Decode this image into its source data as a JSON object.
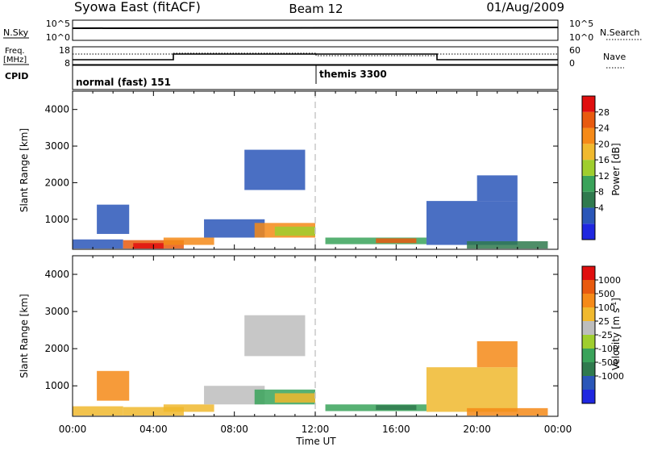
{
  "header": {
    "station": "Syowa East (fitACF)",
    "beam": "Beam 12",
    "date": "01/Aug/2009"
  },
  "top_panels": {
    "nsky_label": "N.Sky",
    "nsearch_label": "N.Search",
    "nsky_ticks": [
      "10^5",
      "10^0"
    ],
    "nsearch_ticks": [
      "10^5",
      "10^0"
    ],
    "freq_label_1": "Freq.",
    "freq_label_2": "[MHz]",
    "freq_ticks": [
      "18",
      "8"
    ],
    "nave_label": "Nave",
    "nave_ticks": [
      "60",
      "0"
    ],
    "cpid_label": "CPID",
    "cpid_segments": [
      {
        "name": "normal (fast) 151",
        "start_hour": 0
      },
      {
        "name": "themis 3300",
        "start_hour": 12
      }
    ]
  },
  "chart_data": [
    {
      "type": "heatmap",
      "title": "",
      "ylabel": "Slant Range [km]",
      "xlabel": "",
      "ylim": [
        180,
        4500
      ],
      "yticks": [
        "4000",
        "3000",
        "2000",
        "1000"
      ],
      "colorbar_label": "Power [dB]",
      "colorbar_ticks": [
        "28",
        "24",
        "20",
        "16",
        "12",
        "8",
        "4"
      ],
      "colors": [
        "#1f27e0",
        "#2a56b8",
        "#2f7a4e",
        "#3aa35a",
        "#9fce2e",
        "#f0b92e",
        "#f58a18",
        "#e85a0f",
        "#e00f0f"
      ],
      "patches": [
        {
          "t": [
            0.0,
            2.5
          ],
          "r": [
            200,
            450
          ],
          "c": 1
        },
        {
          "t": [
            1.2,
            2.8
          ],
          "r": [
            600,
            1400
          ],
          "c": 1
        },
        {
          "t": [
            2.5,
            5.5
          ],
          "r": [
            200,
            430
          ],
          "c": 7
        },
        {
          "t": [
            3.0,
            4.5
          ],
          "r": [
            200,
            350
          ],
          "c": 8
        },
        {
          "t": [
            4.5,
            7.0
          ],
          "r": [
            300,
            500
          ],
          "c": 6
        },
        {
          "t": [
            6.5,
            9.5
          ],
          "r": [
            500,
            1000
          ],
          "c": 1
        },
        {
          "t": [
            8.5,
            11.5
          ],
          "r": [
            1800,
            2900
          ],
          "c": 1
        },
        {
          "t": [
            9.0,
            12.0
          ],
          "r": [
            500,
            900
          ],
          "c": 6
        },
        {
          "t": [
            10.0,
            12.0
          ],
          "r": [
            550,
            800
          ],
          "c": 4
        },
        {
          "t": [
            12.5,
            17.5
          ],
          "r": [
            320,
            500
          ],
          "c": 3
        },
        {
          "t": [
            15.0,
            17.0
          ],
          "r": [
            350,
            480
          ],
          "c": 7
        },
        {
          "t": [
            17.5,
            22.0
          ],
          "r": [
            300,
            1500
          ],
          "c": 1
        },
        {
          "t": [
            19.5,
            23.5
          ],
          "r": [
            200,
            400
          ],
          "c": 2
        },
        {
          "t": [
            20.0,
            22.0
          ],
          "r": [
            1500,
            2200
          ],
          "c": 1
        }
      ]
    },
    {
      "type": "heatmap",
      "title": "",
      "ylabel": "Slant Range [km]",
      "xlabel": "Time UT",
      "ylim": [
        180,
        4500
      ],
      "yticks": [
        "4000",
        "3000",
        "2000",
        "1000"
      ],
      "xticks": [
        "00:00",
        "04:00",
        "08:00",
        "12:00",
        "16:00",
        "20:00",
        "00:00"
      ],
      "colorbar_label": "Velocity [m s",
      "colorbar_label_sup": "-1",
      "colorbar_label_end": "]",
      "colorbar_ticks": [
        "1000",
        "500",
        "100",
        "25",
        "-25",
        "-100",
        "-500",
        "-1000"
      ],
      "colors": [
        "#1f27e0",
        "#2a56b8",
        "#2f7a4e",
        "#3aa35a",
        "#9fce2e",
        "#bdbdbd",
        "#f0b92e",
        "#f58a18",
        "#e85a0f",
        "#e00f0f"
      ],
      "patches": [
        {
          "t": [
            0.0,
            2.5
          ],
          "r": [
            200,
            450
          ],
          "c": 6
        },
        {
          "t": [
            1.2,
            2.8
          ],
          "r": [
            600,
            1400
          ],
          "c": 7
        },
        {
          "t": [
            2.5,
            5.5
          ],
          "r": [
            200,
            430
          ],
          "c": 6
        },
        {
          "t": [
            4.5,
            7.0
          ],
          "r": [
            300,
            500
          ],
          "c": 6
        },
        {
          "t": [
            6.5,
            9.5
          ],
          "r": [
            500,
            1000
          ],
          "c": 5
        },
        {
          "t": [
            8.5,
            11.5
          ],
          "r": [
            1800,
            2900
          ],
          "c": 5
        },
        {
          "t": [
            9.0,
            12.0
          ],
          "r": [
            500,
            900
          ],
          "c": 3
        },
        {
          "t": [
            10.0,
            12.0
          ],
          "r": [
            550,
            800
          ],
          "c": 6
        },
        {
          "t": [
            12.5,
            17.5
          ],
          "r": [
            320,
            500
          ],
          "c": 3
        },
        {
          "t": [
            15.0,
            17.0
          ],
          "r": [
            350,
            480
          ],
          "c": 2
        },
        {
          "t": [
            17.5,
            22.0
          ],
          "r": [
            300,
            1500
          ],
          "c": 6
        },
        {
          "t": [
            19.5,
            23.5
          ],
          "r": [
            200,
            400
          ],
          "c": 7
        },
        {
          "t": [
            20.0,
            22.0
          ],
          "r": [
            1500,
            2200
          ],
          "c": 7
        }
      ]
    }
  ]
}
